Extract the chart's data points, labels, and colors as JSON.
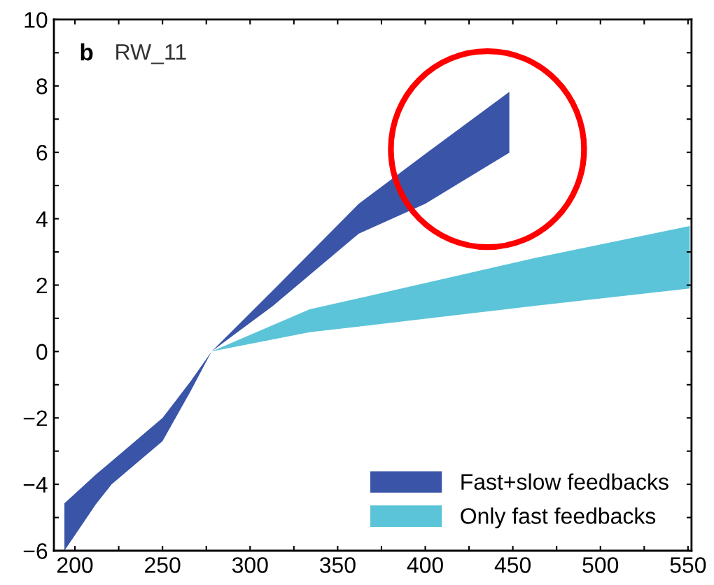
{
  "chart_data": {
    "type": "area",
    "title": "RW_11",
    "annotations": [
      "b"
    ],
    "series": [
      {
        "name": "Fast+slow feedbacks",
        "color": "#3a55a8",
        "x": [
          194,
          212,
          221,
          250,
          266,
          278,
          313,
          362,
          400,
          448,
          448,
          400,
          362,
          313,
          278,
          266,
          250,
          221,
          212,
          194
        ],
        "values": [
          -4.57,
          -3.7,
          -3.3,
          -2.0,
          -0.9,
          0,
          1.84,
          4.45,
          5.95,
          7.82,
          5.99,
          4.45,
          3.55,
          1.37,
          0,
          -1.2,
          -2.7,
          -4.0,
          -4.6,
          -6
        ]
      },
      {
        "name": "Only fast feedbacks",
        "color": "#5bc4d8",
        "x": [
          278,
          334,
          462,
          551,
          551,
          462,
          334,
          278
        ],
        "values": [
          0,
          1.27,
          2.81,
          3.78,
          1.9,
          1.37,
          0.58,
          0
        ]
      }
    ],
    "xlim": [
      188,
      552
    ],
    "xticks": [
      200,
      {
        "value": 225,
        "label": null
      },
      250,
      {
        "value": 275,
        "label": null
      },
      300,
      {
        "value": 325,
        "label": null
      },
      350,
      {
        "value": 375,
        "label": null
      },
      400,
      {
        "value": 425,
        "label": null
      },
      450,
      {
        "value": 475,
        "label": null
      },
      500,
      {
        "value": 525,
        "label": null
      },
      550
    ],
    "ylim": [
      -6,
      10
    ],
    "yticks": [
      {
        "value": -6,
        "label": "−6"
      },
      {
        "value": -5,
        "label": null
      },
      {
        "value": -4,
        "label": "−4"
      },
      {
        "value": -3,
        "label": null
      },
      {
        "value": -2,
        "label": "−2"
      },
      {
        "value": -1,
        "label": null
      },
      0,
      {
        "value": 1,
        "label": null
      },
      2,
      {
        "value": 3,
        "label": null
      },
      4,
      {
        "value": 5,
        "label": null
      },
      6,
      {
        "value": 7,
        "label": null
      },
      8,
      {
        "value": 9,
        "label": null
      },
      10
    ],
    "legend": "bottom right",
    "grid": false
  }
}
